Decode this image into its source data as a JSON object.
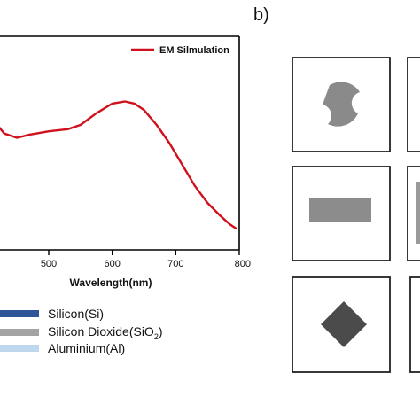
{
  "panel_b_label": "b)",
  "chart_data": {
    "type": "line",
    "xlabel": "Wavelength(nm)",
    "ylabel": "",
    "xlim": [
      400,
      800
    ],
    "x_ticks": [
      "500",
      "600",
      "700",
      "800"
    ],
    "grid": false,
    "legend_placement": "top-right",
    "series": [
      {
        "name": "EM Silmulation",
        "color": "#d0101c",
        "x": [
          400,
          405,
          415,
          430,
          450,
          470,
          500,
          530,
          550,
          575,
          600,
          620,
          635,
          650,
          670,
          690,
          710,
          730,
          750,
          770,
          785,
          795
        ],
        "y": [
          0.7,
          0.68,
          0.6,
          0.545,
          0.525,
          0.54,
          0.555,
          0.565,
          0.585,
          0.64,
          0.685,
          0.695,
          0.685,
          0.655,
          0.585,
          0.5,
          0.4,
          0.3,
          0.22,
          0.16,
          0.12,
          0.1
        ]
      }
    ],
    "ylim": [
      0,
      1
    ]
  },
  "materials": [
    {
      "label": "Silicon(Si)",
      "color": "#2d5597"
    },
    {
      "label": "Silicon Dioxide(SiO",
      "sub": "2",
      "tail": ")",
      "color": "#a3a3a3"
    },
    {
      "label": "Aluminium(Al)",
      "color": "#bfd7ee"
    }
  ],
  "shapes": [
    {
      "shape": "crescent-disc",
      "color": "#8a8a8a"
    },
    {
      "shape": "rectangle",
      "color": "#8c8c8c"
    },
    {
      "shape": "diamond",
      "color": "#4b4b4b"
    }
  ]
}
